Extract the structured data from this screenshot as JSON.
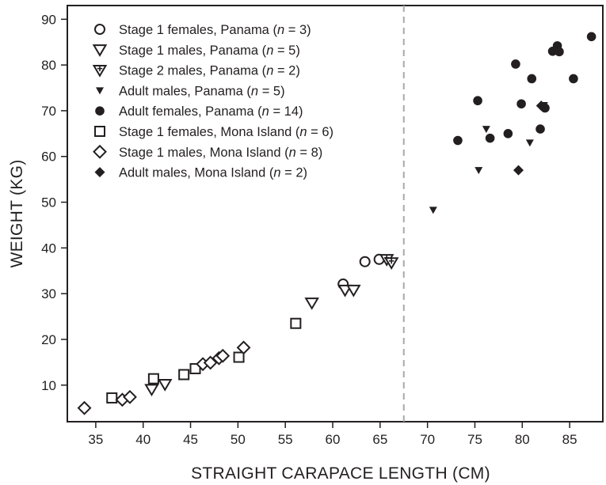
{
  "chart_data": {
    "type": "scatter",
    "title": "",
    "xlabel": "STRAIGHT CARAPACE LENGTH (CM)",
    "ylabel": "WEIGHT (KG)",
    "xlim": [
      32,
      88.5
    ],
    "ylim": [
      2,
      93
    ],
    "xticks": [
      35,
      40,
      45,
      50,
      55,
      60,
      65,
      70,
      75,
      80,
      85
    ],
    "yticks": [
      10,
      20,
      30,
      40,
      50,
      60,
      70,
      80,
      90
    ],
    "grid": false,
    "legend_position": "top-left",
    "reference_line": {
      "x": 67.5,
      "style": "dashed",
      "color": "#a7a9ac"
    },
    "series": [
      {
        "name_parts": [
          "Stage 1 females, Panama (",
          "n",
          " = 3)"
        ],
        "marker": "circle-open",
        "points": [
          [
            61.1,
            32.1
          ],
          [
            63.4,
            37.0
          ],
          [
            64.9,
            37.5
          ]
        ]
      },
      {
        "name_parts": [
          "Stage 1 males, Panama (",
          "n",
          " = 5)"
        ],
        "marker": "triangle-down-open",
        "points": [
          [
            40.9,
            9.1
          ],
          [
            42.3,
            10.2
          ],
          [
            57.8,
            28.0
          ],
          [
            61.3,
            30.8
          ],
          [
            62.2,
            30.8
          ]
        ]
      },
      {
        "name_parts": [
          "Stage 2 males, Panama (",
          "n",
          " = 2)"
        ],
        "marker": "triangle-down-cross",
        "points": [
          [
            65.7,
            37.5
          ],
          [
            66.2,
            36.8
          ]
        ]
      },
      {
        "name_parts": [
          "Adult males, Panama (",
          "n",
          " = 5)"
        ],
        "marker": "triangle-down-filled",
        "points": [
          [
            70.6,
            48.3
          ],
          [
            75.4,
            57.0
          ],
          [
            76.2,
            66.0
          ],
          [
            80.8,
            63.0
          ],
          [
            82.3,
            71.2
          ]
        ]
      },
      {
        "name_parts": [
          "Adult females, Panama (",
          "n",
          " = 14)"
        ],
        "marker": "circle-filled",
        "points": [
          [
            73.2,
            63.5
          ],
          [
            75.3,
            72.2
          ],
          [
            76.6,
            64.0
          ],
          [
            78.5,
            65.0
          ],
          [
            79.3,
            80.2
          ],
          [
            79.9,
            71.5
          ],
          [
            81.0,
            77.0
          ],
          [
            81.9,
            66.0
          ],
          [
            82.4,
            70.6
          ],
          [
            83.2,
            83.0
          ],
          [
            83.9,
            82.9
          ],
          [
            83.7,
            84.2
          ],
          [
            85.4,
            77.0
          ],
          [
            87.3,
            86.2
          ]
        ]
      },
      {
        "name_parts": [
          "Stage 1 females, Mona Island (",
          "n",
          " = 6)"
        ],
        "marker": "square-open",
        "points": [
          [
            36.7,
            7.2
          ],
          [
            41.1,
            11.4
          ],
          [
            44.3,
            12.3
          ],
          [
            45.5,
            13.6
          ],
          [
            50.1,
            16.1
          ],
          [
            56.1,
            23.5
          ]
        ]
      },
      {
        "name_parts": [
          "Stage 1 males, Mona Island (",
          "n",
          " = 8)"
        ],
        "marker": "diamond-open",
        "points": [
          [
            33.8,
            5.0
          ],
          [
            37.8,
            6.8
          ],
          [
            38.6,
            7.4
          ],
          [
            46.3,
            14.6
          ],
          [
            47.1,
            14.9
          ],
          [
            48.0,
            15.9
          ],
          [
            48.4,
            16.4
          ],
          [
            50.6,
            18.2
          ]
        ]
      },
      {
        "name_parts": [
          "Adult males, Mona Island (",
          "n",
          " = 2)"
        ],
        "marker": "diamond-filled",
        "points": [
          [
            79.6,
            57.0
          ],
          [
            82.0,
            71.1
          ]
        ]
      }
    ]
  }
}
